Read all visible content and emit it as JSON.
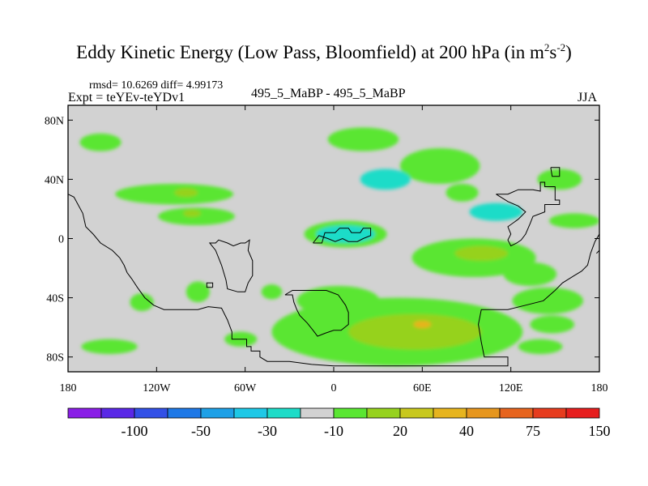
{
  "chart_data": {
    "type": "heatmap",
    "title": "Eddy Kinetic Energy (Low Pass, Bloomfield) at 200 hPa (in m",
    "title_units_sup1": "2",
    "title_units_mid": "s",
    "title_units_sup2": "-2",
    "title_close": ")",
    "rmsd_text": "rmsd= 10.6269 diff= 4.99173",
    "expt_text": "Expt = teYEv-teYDv1",
    "case_text": "495_5_MaBP - 495_5_MaBP",
    "season_text": "JJA",
    "x_range": [
      -180,
      180
    ],
    "y_range": [
      -90,
      90
    ],
    "x_ticks": [
      "180",
      "120W",
      "60W",
      "0",
      "60E",
      "120E",
      "180"
    ],
    "y_ticks": [
      "80N",
      "40N",
      "0",
      "40S",
      "80S"
    ],
    "colorbar": {
      "colors": [
        "#8a1ee6",
        "#5a28e6",
        "#3250e6",
        "#1e78e6",
        "#1ea0e6",
        "#1ec8e6",
        "#1edcc8",
        "#d2d2d2",
        "#5ae632",
        "#96d21e",
        "#c8c81e",
        "#e6b41e",
        "#e6961e",
        "#e6641e",
        "#e63c1e",
        "#e61e1e"
      ],
      "labels": [
        "-100",
        "-50",
        "-30",
        "-10",
        "20",
        "40",
        "75",
        "150"
      ]
    },
    "features": [
      {
        "level": "20",
        "lon": -158,
        "lat": 65,
        "rx": 14,
        "ry": 6
      },
      {
        "level": "20",
        "lon": 20,
        "lat": 67,
        "rx": 24,
        "ry": 8
      },
      {
        "level": "20",
        "lon": 72,
        "lat": 49,
        "rx": 27,
        "ry": 12
      },
      {
        "level": "-10",
        "lon": 35,
        "lat": 40,
        "rx": 17,
        "ry": 7
      },
      {
        "level": "20",
        "lon": 87,
        "lat": 31,
        "rx": 11,
        "ry": 6
      },
      {
        "level": "20",
        "lon": 153,
        "lat": 40,
        "rx": 15,
        "ry": 7
      },
      {
        "level": "20",
        "lon": -108,
        "lat": 30,
        "rx": 40,
        "ry": 7
      },
      {
        "level": "40",
        "lon": -100,
        "lat": 31,
        "rx": 8,
        "ry": 3
      },
      {
        "level": "20",
        "lon": -93,
        "lat": 15,
        "rx": 26,
        "ry": 6
      },
      {
        "level": "40",
        "lon": -96,
        "lat": 17,
        "rx": 6,
        "ry": 2.5
      },
      {
        "level": "20",
        "lon": 163,
        "lat": 12,
        "rx": 17,
        "ry": 5
      },
      {
        "level": "-10",
        "lon": 110,
        "lat": 18,
        "rx": 18,
        "ry": 6
      },
      {
        "level": "20",
        "lon": 8,
        "lat": 3,
        "rx": 28,
        "ry": 9
      },
      {
        "level": "-10",
        "lon": 8,
        "lat": 3,
        "rx": 20,
        "ry": 6
      },
      {
        "level": "20",
        "lon": 95,
        "lat": -13,
        "rx": 42,
        "ry": 13
      },
      {
        "level": "40",
        "lon": 100,
        "lat": -10,
        "rx": 18,
        "ry": 5
      },
      {
        "level": "20",
        "lon": 133,
        "lat": -24,
        "rx": 18,
        "ry": 8
      },
      {
        "level": "20",
        "lon": -130,
        "lat": -43,
        "rx": 8,
        "ry": 6
      },
      {
        "level": "20",
        "lon": -92,
        "lat": -36,
        "rx": 8,
        "ry": 7
      },
      {
        "level": "20",
        "lon": -42,
        "lat": -36,
        "rx": 7,
        "ry": 5
      },
      {
        "level": "20",
        "lon": 145,
        "lat": -42,
        "rx": 24,
        "ry": 9
      },
      {
        "level": "20",
        "lon": 148,
        "lat": -58,
        "rx": 15,
        "ry": 6
      },
      {
        "level": "20",
        "lon": -152,
        "lat": -73,
        "rx": 19,
        "ry": 5
      },
      {
        "level": "20",
        "lon": -63,
        "lat": -68,
        "rx": 11,
        "ry": 5
      },
      {
        "level": "20",
        "lon": 140,
        "lat": -73,
        "rx": 15,
        "ry": 5
      },
      {
        "level": "20",
        "lon": 43,
        "lat": -63,
        "rx": 85,
        "ry": 23
      },
      {
        "level": "20",
        "lon": 3,
        "lat": -42,
        "rx": 28,
        "ry": 10
      },
      {
        "level": "40",
        "lon": 55,
        "lat": -63,
        "rx": 45,
        "ry": 12
      },
      {
        "level": "75",
        "lon": 60,
        "lat": -58,
        "rx": 6,
        "ry": 2.5
      }
    ],
    "coastlines": [
      [
        [
          -180,
          30
        ],
        [
          -176,
          28
        ],
        [
          -170,
          17
        ],
        [
          -168,
          8
        ],
        [
          -163,
          3
        ],
        [
          -158,
          -3
        ],
        [
          -150,
          -8
        ],
        [
          -145,
          -13
        ],
        [
          -142,
          -18
        ],
        [
          -140,
          -23
        ],
        [
          -137,
          -27
        ],
        [
          -133,
          -33
        ],
        [
          -128,
          -40
        ],
        [
          -122,
          -45
        ],
        [
          -115,
          -48
        ],
        [
          -100,
          -48
        ],
        [
          -92,
          -48
        ],
        [
          -85,
          -46
        ],
        [
          -76,
          -47
        ],
        [
          -72,
          -55
        ],
        [
          -69,
          -63
        ],
        [
          -69,
          -68
        ],
        [
          -59,
          -68
        ],
        [
          -59,
          -73
        ],
        [
          -56,
          -73
        ],
        [
          -56,
          -76
        ],
        [
          -50,
          -76
        ],
        [
          -50,
          -80
        ],
        [
          -45,
          -83
        ],
        [
          -30,
          -83
        ],
        [
          -15,
          -85
        ],
        [
          0,
          -86
        ],
        [
          40,
          -86
        ],
        [
          70,
          -86
        ],
        [
          90,
          -86
        ],
        [
          105,
          -86
        ],
        [
          118,
          -86
        ],
        [
          118,
          -80
        ],
        [
          102,
          -80
        ],
        [
          100,
          -70
        ],
        [
          98,
          -58
        ],
        [
          100,
          -48
        ],
        [
          118,
          -48
        ],
        [
          130,
          -45
        ],
        [
          142,
          -42
        ],
        [
          150,
          -35
        ],
        [
          155,
          -30
        ],
        [
          163,
          -25
        ],
        [
          168,
          -22
        ],
        [
          172,
          -18
        ],
        [
          174,
          -10
        ],
        [
          177,
          -2
        ],
        [
          180,
          3
        ]
      ],
      [
        [
          -180,
          28
        ],
        [
          -180,
          10
        ]
      ],
      [
        [
          -63,
          -3
        ],
        [
          -60,
          -3
        ],
        [
          -57,
          -1
        ],
        [
          -58,
          -8
        ],
        [
          -55,
          -15
        ],
        [
          -55,
          -25
        ],
        [
          -58,
          -30
        ],
        [
          -60,
          -36
        ],
        [
          -65,
          -36
        ],
        [
          -72,
          -34
        ],
        [
          -73,
          -28
        ],
        [
          -76,
          -18
        ],
        [
          -80,
          -8
        ],
        [
          -84,
          -3
        ],
        [
          -80,
          -3
        ],
        [
          -78,
          -1
        ],
        [
          -72,
          -3
        ],
        [
          -68,
          -5
        ],
        [
          -63,
          -3
        ]
      ],
      [
        [
          -82,
          -33
        ],
        [
          -86,
          -33
        ],
        [
          -86,
          -30
        ],
        [
          -82,
          -30
        ],
        [
          -82,
          -33
        ]
      ],
      [
        [
          -33,
          -38
        ],
        [
          -28,
          -38
        ],
        [
          -27,
          -43
        ],
        [
          -25,
          -48
        ],
        [
          -23,
          -52
        ],
        [
          -18,
          -57
        ],
        [
          -14,
          -62
        ],
        [
          -11,
          -66
        ],
        [
          -6,
          -64
        ],
        [
          0,
          -62
        ],
        [
          5,
          -62
        ],
        [
          10,
          -58
        ],
        [
          10,
          -50
        ],
        [
          8,
          -45
        ],
        [
          3,
          -38
        ],
        [
          -5,
          -35
        ],
        [
          -18,
          -35
        ],
        [
          -28,
          -35
        ],
        [
          -33,
          -38
        ]
      ],
      [
        [
          -14,
          -3
        ],
        [
          -8,
          -3
        ],
        [
          -6,
          4
        ],
        [
          1,
          4
        ],
        [
          4,
          7
        ],
        [
          10,
          7
        ],
        [
          12,
          4
        ],
        [
          18,
          4
        ],
        [
          20,
          7
        ],
        [
          25,
          7
        ],
        [
          25,
          2
        ],
        [
          20,
          0
        ],
        [
          16,
          -2
        ],
        [
          10,
          -2
        ],
        [
          6,
          0
        ],
        [
          1,
          -2
        ],
        [
          -4,
          0
        ],
        [
          -10,
          2
        ],
        [
          -14,
          -3
        ]
      ],
      [
        [
          110,
          30
        ],
        [
          118,
          30
        ],
        [
          125,
          33
        ],
        [
          135,
          33
        ],
        [
          140,
          32
        ],
        [
          140,
          38
        ],
        [
          143,
          38
        ],
        [
          143,
          35
        ],
        [
          150,
          35
        ],
        [
          150,
          26
        ],
        [
          153,
          26
        ],
        [
          153,
          23
        ],
        [
          143,
          23
        ],
        [
          143,
          18
        ],
        [
          135,
          15
        ],
        [
          133,
          10
        ],
        [
          130,
          3
        ],
        [
          127,
          -1
        ],
        [
          124,
          -3
        ],
        [
          120,
          -5
        ],
        [
          118,
          -1
        ],
        [
          120,
          3
        ],
        [
          118,
          8
        ],
        [
          125,
          13
        ],
        [
          130,
          18
        ],
        [
          125,
          22
        ],
        [
          118,
          25
        ],
        [
          110,
          30
        ]
      ],
      [
        [
          147,
          48
        ],
        [
          153,
          48
        ],
        [
          153,
          42
        ],
        [
          148,
          42
        ],
        [
          147,
          48
        ]
      ],
      [
        [
          178,
          -10
        ],
        [
          180,
          -8
        ]
      ]
    ]
  }
}
